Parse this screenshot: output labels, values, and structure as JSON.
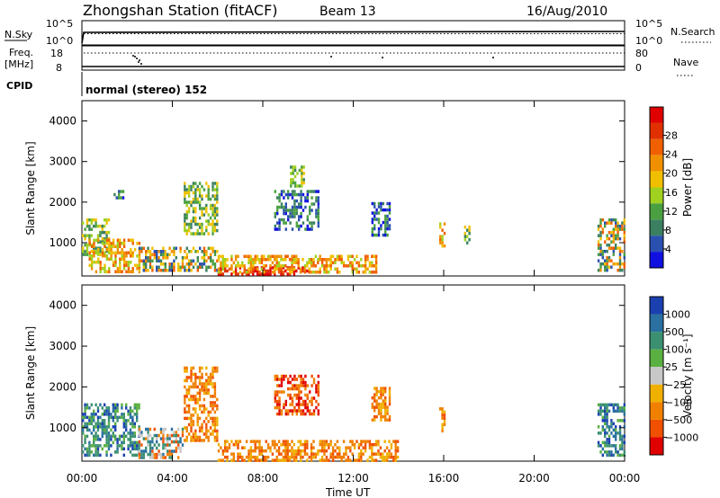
{
  "header": {
    "station": "Zhongshan Station (fitACF)",
    "beam": "Beam 13",
    "date": "16/Aug/2010"
  },
  "strips": {
    "nsky": {
      "label": "N.Sky",
      "tick_top": "10^5",
      "tick_bottom": "10^0"
    },
    "nsearch": {
      "label": "N.Search",
      "tick_top": "10^5",
      "tick_bottom": "10^0"
    },
    "freq": {
      "label_top": "Freq.",
      "label_bottom": "[MHz]",
      "tick_top": "18",
      "tick_bottom": "8"
    },
    "nave": {
      "label": "Nave",
      "tick_top": "80",
      "tick_bottom": "0"
    },
    "cpid": {
      "label": "CPID",
      "value": "normal (stereo) 152"
    }
  },
  "chart_data": [
    {
      "type": "heatmap",
      "name": "power",
      "ylabel": "Slant Range [km]",
      "xlabel": "Time UT",
      "y_ticks": [
        "1000",
        "2000",
        "3000",
        "4000"
      ],
      "x_ticks": [
        "00:00",
        "04:00",
        "08:00",
        "12:00",
        "16:00",
        "20:00",
        "00:00"
      ],
      "x_range_hours": [
        0,
        24
      ],
      "y_range_km": [
        180,
        4500
      ],
      "colorbar": {
        "label": "Power [dB]",
        "ticks": [
          "4",
          "8",
          "12",
          "16",
          "20",
          "24",
          "28"
        ],
        "colors": [
          "#1010e0",
          "#2a50b0",
          "#3a8060",
          "#4aa040",
          "#a0d020",
          "#f0c000",
          "#f09000",
          "#f06000",
          "#e03000",
          "#e00000"
        ]
      },
      "regions": [
        {
          "t": [
            0.0,
            1.2
          ],
          "r": [
            700,
            1600
          ],
          "level": "mid"
        },
        {
          "t": [
            0.3,
            2.5
          ],
          "r": [
            300,
            1100
          ],
          "level": "high"
        },
        {
          "t": [
            1.4,
            1.8
          ],
          "r": [
            2100,
            2300
          ],
          "level": "low"
        },
        {
          "t": [
            2.5,
            6.0
          ],
          "r": [
            300,
            900
          ],
          "level": "mixed"
        },
        {
          "t": [
            4.5,
            6.0
          ],
          "r": [
            1200,
            2500
          ],
          "level": "mid"
        },
        {
          "t": [
            6.0,
            10.0
          ],
          "r": [
            220,
            420
          ],
          "level": "max"
        },
        {
          "t": [
            6.0,
            13.0
          ],
          "r": [
            300,
            700
          ],
          "level": "high"
        },
        {
          "t": [
            8.5,
            10.5
          ],
          "r": [
            1300,
            2300
          ],
          "level": "low"
        },
        {
          "t": [
            9.2,
            9.8
          ],
          "r": [
            2400,
            2900
          ],
          "level": "mid"
        },
        {
          "t": [
            12.8,
            13.6
          ],
          "r": [
            1200,
            2000
          ],
          "level": "low"
        },
        {
          "t": [
            15.8,
            16.0
          ],
          "r": [
            900,
            1500
          ],
          "level": "high"
        },
        {
          "t": [
            16.9,
            17.1
          ],
          "r": [
            1000,
            1500
          ],
          "level": "mid"
        },
        {
          "t": [
            22.8,
            24.0
          ],
          "r": [
            300,
            1600
          ],
          "level": "mixed"
        }
      ]
    },
    {
      "type": "heatmap",
      "name": "velocity",
      "ylabel": "Slant Range [km]",
      "xlabel": "Time UT",
      "y_ticks": [
        "1000",
        "2000",
        "3000",
        "4000"
      ],
      "x_ticks": [
        "00:00",
        "04:00",
        "08:00",
        "12:00",
        "16:00",
        "20:00",
        "00:00"
      ],
      "x_range_hours": [
        0,
        24
      ],
      "y_range_km": [
        180,
        4500
      ],
      "colorbar": {
        "label": "Velocity [m s⁻¹]",
        "ticks": [
          "1000",
          "500",
          "100",
          "25",
          "−25",
          "−100",
          "−500",
          "−1000"
        ],
        "colors": [
          "#1a40b0",
          "#2a70a0",
          "#3a9070",
          "#5ab040",
          "#c8c8c8",
          "#f0b000",
          "#f08000",
          "#f05000",
          "#e00000"
        ]
      },
      "regions": [
        {
          "t": [
            0.0,
            2.5
          ],
          "r": [
            300,
            1600
          ],
          "level": "positive"
        },
        {
          "t": [
            2.5,
            4.5
          ],
          "r": [
            300,
            1000
          ],
          "level": "mixed"
        },
        {
          "t": [
            4.5,
            6.0
          ],
          "r": [
            700,
            2500
          ],
          "level": "negative"
        },
        {
          "t": [
            6.0,
            14.0
          ],
          "r": [
            220,
            700
          ],
          "level": "negative"
        },
        {
          "t": [
            8.5,
            10.5
          ],
          "r": [
            1300,
            2300
          ],
          "level": "strong-negative"
        },
        {
          "t": [
            12.8,
            13.6
          ],
          "r": [
            1200,
            2000
          ],
          "level": "negative"
        },
        {
          "t": [
            15.8,
            16.0
          ],
          "r": [
            900,
            1500
          ],
          "level": "negative"
        },
        {
          "t": [
            22.8,
            24.0
          ],
          "r": [
            300,
            1600
          ],
          "level": "positive"
        }
      ]
    }
  ]
}
